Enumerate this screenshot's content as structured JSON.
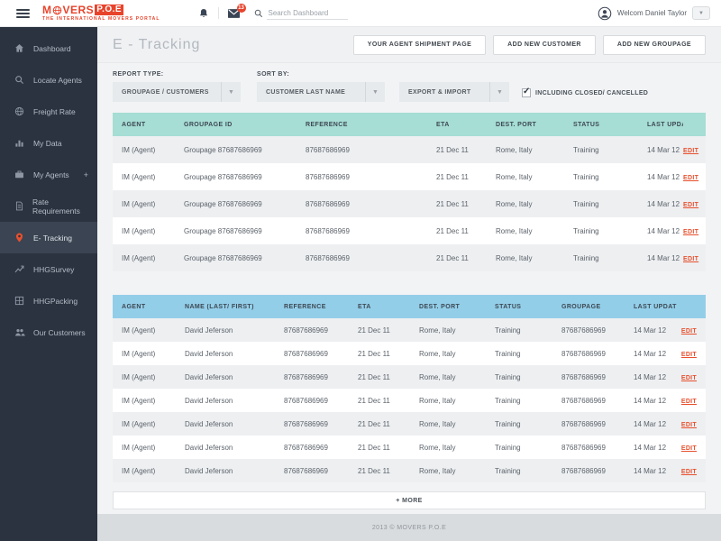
{
  "topbar": {
    "logo": {
      "prefix": "M",
      "suffix": "VERS",
      "box": "P.O.E",
      "tagline": "THE INTERNATIONAL MOVERS PORTAL"
    },
    "notifications_badge": "13",
    "search_placeholder": "Search Dashboard",
    "user_greeting": "Welcom Daniel Taylor",
    "icons": [
      "menu",
      "globe",
      "bell",
      "envelope",
      "search",
      "avatar",
      "chevron-down"
    ]
  },
  "sidebar": {
    "items": [
      {
        "label": "Dashboard",
        "icon": "home",
        "active": false
      },
      {
        "label": "Locate Agents",
        "icon": "search",
        "active": false
      },
      {
        "label": "Freight Rate",
        "icon": "globe",
        "active": false
      },
      {
        "label": "My Data",
        "icon": "bar-chart",
        "active": false
      },
      {
        "label": "My Agents",
        "icon": "briefcase",
        "active": false,
        "suffix": "+"
      },
      {
        "label": "Rate Requirements",
        "icon": "document",
        "active": false
      },
      {
        "label": "E- Tracking",
        "icon": "map-pin",
        "active": true,
        "icon_color": "#e8502e"
      },
      {
        "label": "HHGSurvey",
        "icon": "line-chart",
        "active": false
      },
      {
        "label": "HHGPacking",
        "icon": "package",
        "active": false
      },
      {
        "label": "Our Customers",
        "icon": "users",
        "active": false
      }
    ]
  },
  "page": {
    "title": "E - Tracking",
    "actions": [
      "YOUR AGENT SHIPMENT PAGE",
      "ADD NEW CUSTOMER",
      "ADD NEW GROUPAGE"
    ]
  },
  "filters": {
    "report_type_label": "REPORT TYPE:",
    "report_type_value": "GROUPAGE / CUSTOMERS",
    "sort_by_label": "SORT BY:",
    "sort_by_value": "CUSTOMER LAST NAME",
    "export_import_value": "EXPORT & IMPORT",
    "checkbox_label": "INCLUDING CLOSED/ CANCELLED",
    "checkbox_checked": true
  },
  "groupage_table": {
    "header_color": "#a6ddd4",
    "headers": [
      "AGENT",
      "GROUPAGE ID",
      "REFERENCE",
      "ETA",
      "DEST. PORT",
      "STATUS",
      "LAST UPDATE"
    ],
    "columns": [
      "agent",
      "groupage_id",
      "reference",
      "eta",
      "dest_port",
      "status",
      "last_update"
    ],
    "edit_label": "EDIT",
    "rows": [
      {
        "agent": "IM (Agent)",
        "groupage_id": "Groupage 87687686969",
        "reference": "87687686969",
        "eta": "21 Dec 11",
        "dest_port": "Rome, Italy",
        "status": "Training",
        "last_update": "14 Mar 12"
      },
      {
        "agent": "IM (Agent)",
        "groupage_id": "Groupage 87687686969",
        "reference": "87687686969",
        "eta": "21 Dec 11",
        "dest_port": "Rome, Italy",
        "status": "Training",
        "last_update": "14 Mar 12"
      },
      {
        "agent": "IM (Agent)",
        "groupage_id": "Groupage 87687686969",
        "reference": "87687686969",
        "eta": "21 Dec 11",
        "dest_port": "Rome, Italy",
        "status": "Training",
        "last_update": "14 Mar 12"
      },
      {
        "agent": "IM (Agent)",
        "groupage_id": "Groupage 87687686969",
        "reference": "87687686969",
        "eta": "21 Dec 11",
        "dest_port": "Rome, Italy",
        "status": "Training",
        "last_update": "14 Mar 12"
      },
      {
        "agent": "IM (Agent)",
        "groupage_id": "Groupage 87687686969",
        "reference": "87687686969",
        "eta": "21 Dec 11",
        "dest_port": "Rome, Italy",
        "status": "Training",
        "last_update": "14 Mar 12"
      }
    ]
  },
  "customer_table": {
    "header_color": "#93cee9",
    "headers": [
      "AGENT",
      "NAME (LAST/ FIRST)",
      "REFERENCE",
      "ETA",
      "DEST. PORT",
      "STATUS",
      "GROUPAGE",
      "LAST UPDATE"
    ],
    "columns": [
      "agent",
      "name",
      "reference",
      "eta",
      "dest_port",
      "status",
      "groupage",
      "last_update"
    ],
    "edit_label": "EDIT",
    "rows": [
      {
        "agent": "IM (Agent)",
        "name": "David Jeferson",
        "reference": "87687686969",
        "eta": "21 Dec 11",
        "dest_port": "Rome, Italy",
        "status": "Training",
        "groupage": "87687686969",
        "last_update": "14 Mar 12"
      },
      {
        "agent": "IM (Agent)",
        "name": "David Jeferson",
        "reference": "87687686969",
        "eta": "21 Dec 11",
        "dest_port": "Rome, Italy",
        "status": "Training",
        "groupage": "87687686969",
        "last_update": "14 Mar 12"
      },
      {
        "agent": "IM (Agent)",
        "name": "David Jeferson",
        "reference": "87687686969",
        "eta": "21 Dec 11",
        "dest_port": "Rome, Italy",
        "status": "Training",
        "groupage": "87687686969",
        "last_update": "14 Mar 12"
      },
      {
        "agent": "IM (Agent)",
        "name": "David Jeferson",
        "reference": "87687686969",
        "eta": "21 Dec 11",
        "dest_port": "Rome, Italy",
        "status": "Training",
        "groupage": "87687686969",
        "last_update": "14 Mar 12"
      },
      {
        "agent": "IM (Agent)",
        "name": "David Jeferson",
        "reference": "87687686969",
        "eta": "21 Dec 11",
        "dest_port": "Rome, Italy",
        "status": "Training",
        "groupage": "87687686969",
        "last_update": "14 Mar 12"
      },
      {
        "agent": "IM (Agent)",
        "name": "David Jeferson",
        "reference": "87687686969",
        "eta": "21 Dec 11",
        "dest_port": "Rome, Italy",
        "status": "Training",
        "groupage": "87687686969",
        "last_update": "14 Mar 12"
      },
      {
        "agent": "IM (Agent)",
        "name": "David Jeferson",
        "reference": "87687686969",
        "eta": "21 Dec 11",
        "dest_port": "Rome, Italy",
        "status": "Training",
        "groupage": "87687686969",
        "last_update": "14 Mar 12"
      }
    ]
  },
  "more_label": "+ MORE",
  "footer_text": "2013 © MOVERS P.O.E",
  "colors": {
    "brand_red": "#e8432b",
    "edit_link": "#e8502e",
    "sidebar_bg": "#2b3341",
    "sidebar_active_bg": "#3a4452",
    "groupage_header": "#a6ddd4",
    "customer_header": "#93cee9",
    "row_alt": "#edeff1"
  }
}
